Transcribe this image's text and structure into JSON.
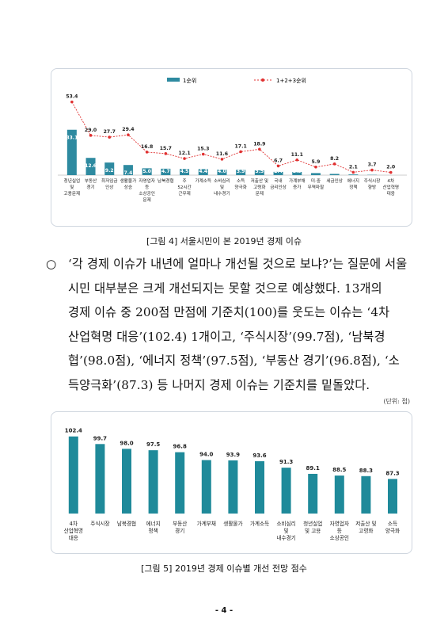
{
  "figure4": {
    "caption": "[그림 4] 서울시민이 본 2019년 경제 이슈",
    "chart_data": {
      "type": "bar",
      "legend": [
        "1순위",
        "1+2+3순위"
      ],
      "legend_position": "top-right",
      "categories": [
        [
          "청년실업",
          "및",
          "고용문제"
        ],
        [
          "부동산",
          "경기"
        ],
        [
          "최저임금",
          "인상"
        ],
        [
          "생활물가",
          "상승"
        ],
        [
          "자영업자",
          "등",
          "소상공인",
          "문제"
        ],
        [
          "남북경협"
        ],
        [
          "주",
          "52시간",
          "근무제"
        ],
        [
          "가계소득"
        ],
        [
          "소비심리",
          "및",
          "내수경기"
        ],
        [
          "소득",
          "양극화"
        ],
        [
          "저출산 및",
          "고령화",
          "문제"
        ],
        [
          "국내",
          "금리인상"
        ],
        [
          "가계부채",
          "증가"
        ],
        [
          "미·중",
          "무역마찰"
        ],
        [
          "세금인상"
        ],
        [
          "에너지",
          "정책"
        ],
        [
          "주식시장",
          "향방"
        ],
        [
          "4차",
          "산업혁명",
          "대응"
        ]
      ],
      "series": [
        {
          "name": "1순위",
          "type": "bar",
          "color": "#2e8aa0",
          "values": [
            33.1,
            12.6,
            9.2,
            7.4,
            5.0,
            4.7,
            4.5,
            4.4,
            4.0,
            3.9,
            3.5,
            2.4,
            2.3,
            1.5,
            0.9,
            0.5,
            0.2,
            0.0
          ]
        },
        {
          "name": "1+2+3순위",
          "type": "line",
          "color": "#e03030",
          "values": [
            53.4,
            29.0,
            27.7,
            29.4,
            16.8,
            15.7,
            12.1,
            15.3,
            11.6,
            17.1,
            18.9,
            6.7,
            11.1,
            5.9,
            8.2,
            2.1,
            3.7,
            2.0
          ]
        }
      ]
    }
  },
  "paragraph": {
    "bullet": "○",
    "lines": [
      "‘각 경제 이슈가 내년에 얼마나 개선될 것으로 보냐?’는 질문에 서울",
      "시민 대부분은 크게 개선되지는 못할 것으로 예상했다. 13개의",
      "경제 이슈 중 200점 만점에 기준치(100)를 웃도는 이슈는 ‘4차",
      "산업혁명 대응’(102.4) 1개이고, ‘주식시장’(99.7점), ‘남북경",
      "협’(98.0점), ‘에너지 정책’(97.5점), ‘부동산 경기’(96.8점), ‘소",
      "득양극화’(87.3) 등 나머지 경제 이슈는 기준치를 밑돌았다."
    ]
  },
  "unit_note": "(단위: 점)",
  "figure5": {
    "caption": "[그림 5] 2019년 경제 이슈별 개선 전망 점수",
    "chart_data": {
      "type": "bar",
      "color": "#1f8a9a",
      "categories": [
        [
          "4차",
          "산업혁명",
          "대응"
        ],
        [
          "주식시장"
        ],
        [
          "남북경협"
        ],
        [
          "에너지",
          "정책"
        ],
        [
          "부동산",
          "경기"
        ],
        [
          "가계부채"
        ],
        [
          "생활물가"
        ],
        [
          "가계소득"
        ],
        [
          "소비심리",
          "및",
          "내수경기"
        ],
        [
          "청년실업",
          "및 고용"
        ],
        [
          "자영업자",
          "등",
          "소상공인"
        ],
        [
          "저출산 및",
          "고령화"
        ],
        [
          "소득",
          "양극화"
        ]
      ],
      "values": [
        102.4,
        99.7,
        98.0,
        97.5,
        96.8,
        94.0,
        93.9,
        93.6,
        91.3,
        89.1,
        88.5,
        88.3,
        87.3
      ]
    }
  },
  "page_number": "- 4 -"
}
